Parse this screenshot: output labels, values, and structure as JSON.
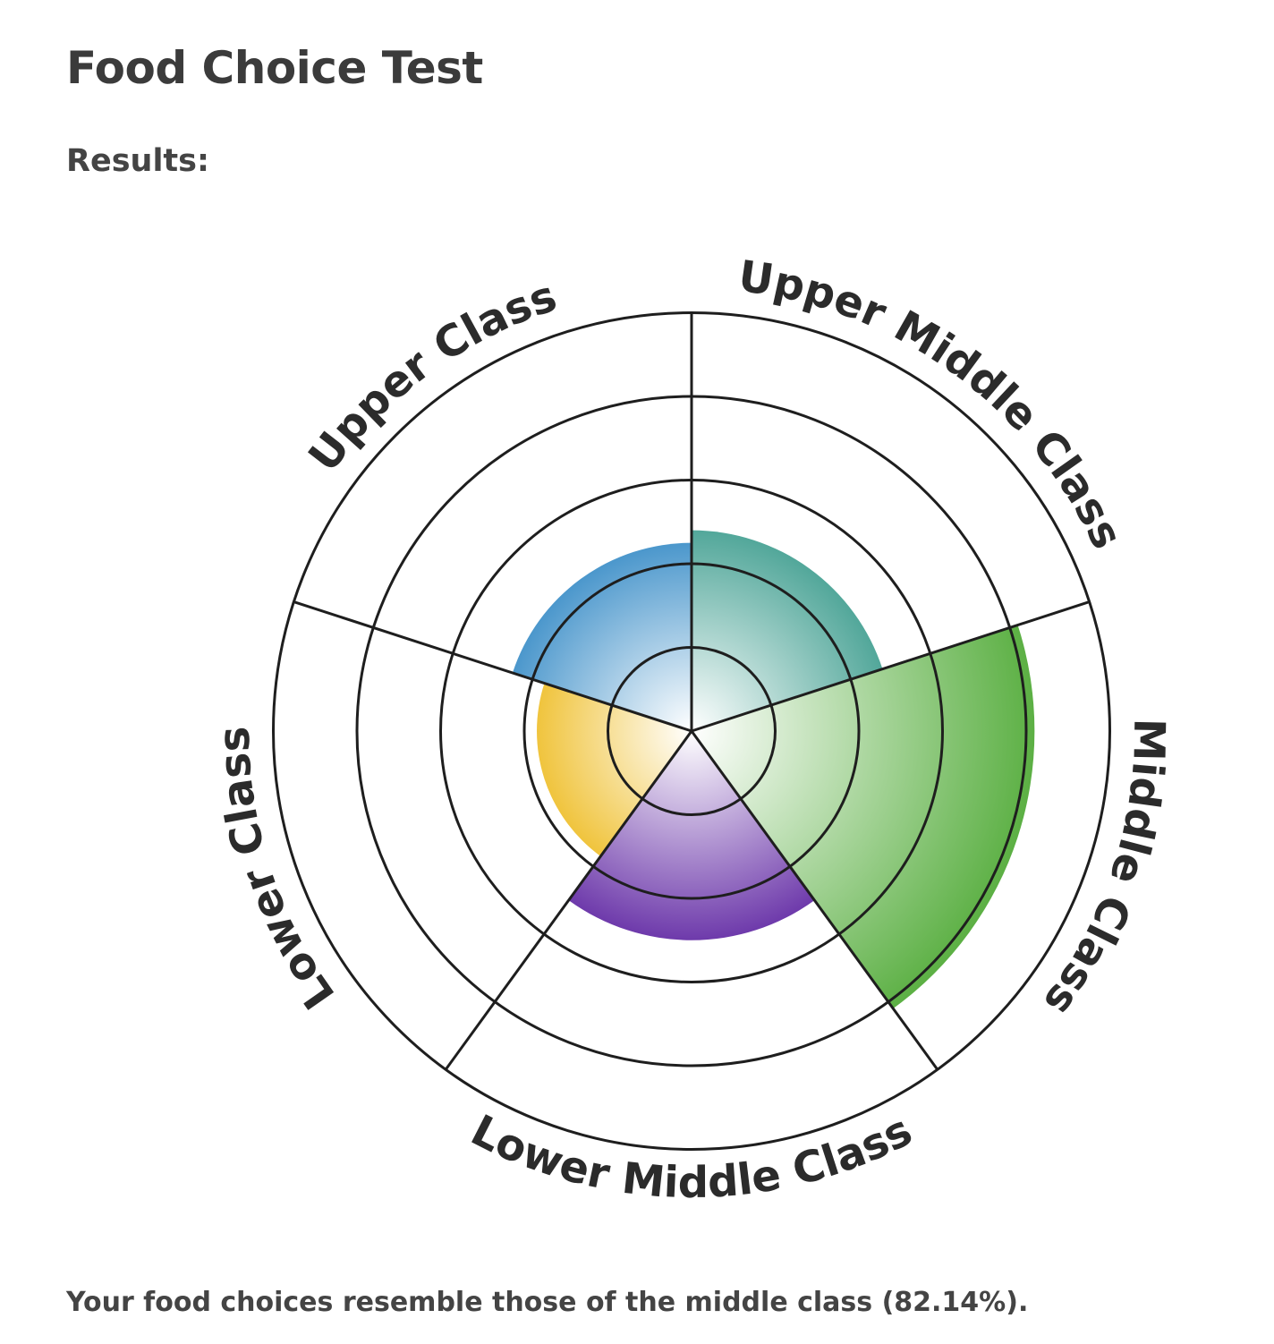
{
  "page": {
    "title": "Food Choice Test",
    "results_label": "Results:",
    "summary": "Your food choices resemble those of the middle class (82.14%)."
  },
  "chart_data": {
    "type": "polar-area",
    "title": "",
    "categories": [
      "Upper Class",
      "Upper Middle Class",
      "Middle Class",
      "Lower Middle Class",
      "Lower Class"
    ],
    "values": [
      2.25,
      2.4,
      4.1,
      2.5,
      1.85
    ],
    "rmax": 5,
    "rings": [
      1,
      2,
      3,
      4,
      5
    ],
    "grid": true,
    "colors": {
      "Upper Class": "#4b97cc",
      "Upper Middle Class": "#52a79a",
      "Middle Class": "#5cb044",
      "Lower Middle Class": "#6e3aab",
      "Lower Class": "#f0c43d"
    }
  }
}
